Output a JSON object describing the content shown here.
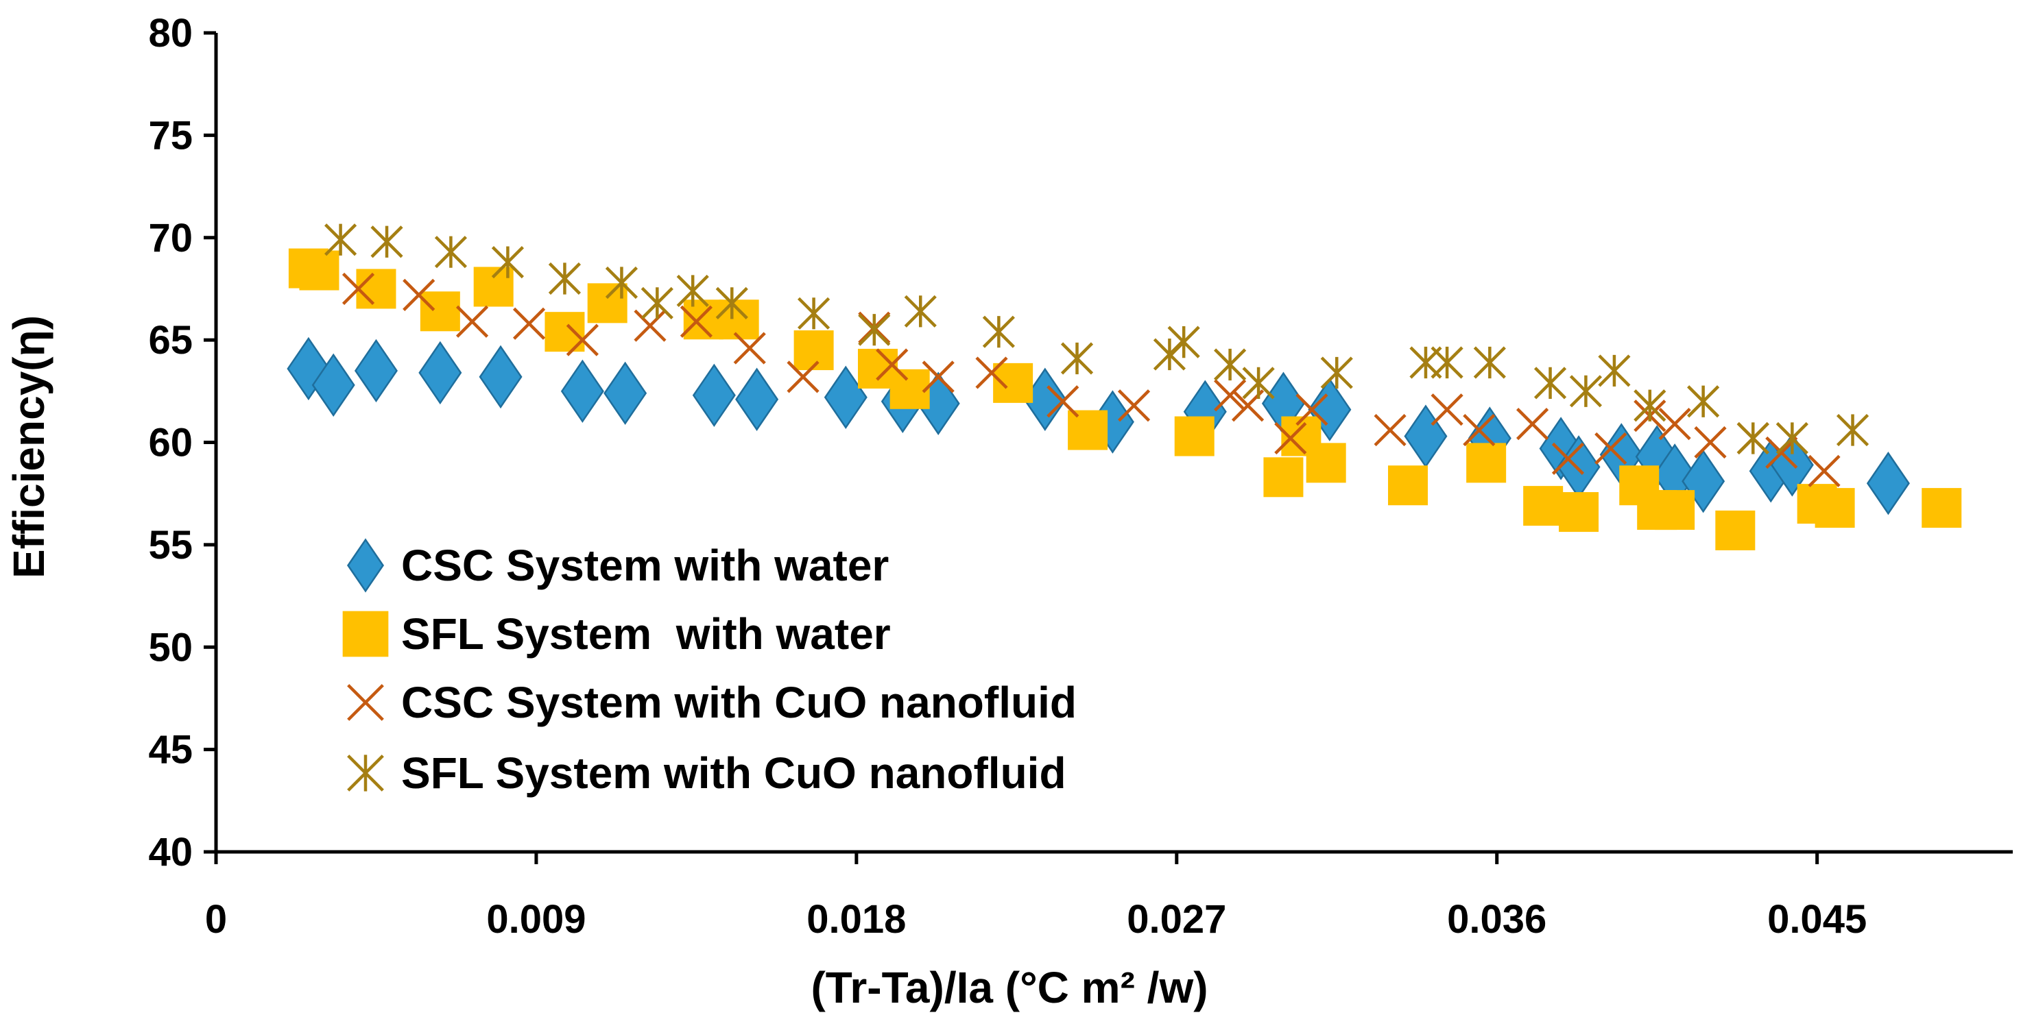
{
  "chart_data": {
    "type": "scatter",
    "title": "",
    "xlabel": "(Tr-Ta)/Ia (°C m² /w)",
    "ylabel": "Efficiency(η)",
    "xlim": [
      0,
      0.0505
    ],
    "ylim": [
      40,
      80
    ],
    "xticks": [
      0,
      0.009,
      0.018,
      0.027,
      0.036,
      0.045
    ],
    "xtick_labels": [
      "0",
      "0.009",
      "0.018",
      "0.027",
      "0.036",
      "0.045"
    ],
    "yticks": [
      40,
      45,
      50,
      55,
      60,
      65,
      70,
      75,
      80
    ],
    "ytick_labels": [
      "40",
      "45",
      "50",
      "55",
      "60",
      "65",
      "70",
      "75",
      "80"
    ],
    "grid": false,
    "legend_position": "bottom-left",
    "series": [
      {
        "name": "CSC System with water",
        "marker": "diamond",
        "color": "#2E96CF",
        "points": [
          [
            0.0026,
            63.6
          ],
          [
            0.0033,
            62.8
          ],
          [
            0.0045,
            63.5
          ],
          [
            0.0063,
            63.4
          ],
          [
            0.008,
            63.2
          ],
          [
            0.0103,
            62.5
          ],
          [
            0.0115,
            62.4
          ],
          [
            0.014,
            62.3
          ],
          [
            0.0152,
            62.1
          ],
          [
            0.0177,
            62.2
          ],
          [
            0.0193,
            62.0
          ],
          [
            0.0203,
            61.9
          ],
          [
            0.0233,
            62.1
          ],
          [
            0.0252,
            61.0
          ],
          [
            0.0278,
            61.5
          ],
          [
            0.03,
            61.9
          ],
          [
            0.0313,
            61.6
          ],
          [
            0.034,
            60.3
          ],
          [
            0.0358,
            60.2
          ],
          [
            0.0378,
            59.7
          ],
          [
            0.0383,
            58.8
          ],
          [
            0.0395,
            59.4
          ],
          [
            0.0405,
            59.3
          ],
          [
            0.041,
            58.4
          ],
          [
            0.0418,
            58.1
          ],
          [
            0.0437,
            58.6
          ],
          [
            0.0443,
            58.9
          ],
          [
            0.047,
            58.0
          ]
        ]
      },
      {
        "name": "SFL System  with water",
        "marker": "square",
        "color": "#FFC000",
        "points": [
          [
            0.0026,
            68.5
          ],
          [
            0.0029,
            68.4
          ],
          [
            0.0045,
            67.5
          ],
          [
            0.0063,
            66.4
          ],
          [
            0.0078,
            67.6
          ],
          [
            0.0098,
            65.4
          ],
          [
            0.011,
            66.8
          ],
          [
            0.0137,
            66.0
          ],
          [
            0.0147,
            66.0
          ],
          [
            0.0168,
            64.5
          ],
          [
            0.0186,
            63.6
          ],
          [
            0.0195,
            62.6
          ],
          [
            0.0224,
            62.9
          ],
          [
            0.0245,
            60.6
          ],
          [
            0.0275,
            60.3
          ],
          [
            0.03,
            58.3
          ],
          [
            0.0305,
            60.3
          ],
          [
            0.0312,
            59.0
          ],
          [
            0.0335,
            57.9
          ],
          [
            0.0357,
            59.0
          ],
          [
            0.0373,
            56.9
          ],
          [
            0.0383,
            56.6
          ],
          [
            0.04,
            57.9
          ],
          [
            0.0405,
            56.7
          ],
          [
            0.041,
            56.7
          ],
          [
            0.0427,
            55.7
          ],
          [
            0.045,
            57.0
          ],
          [
            0.0455,
            56.8
          ],
          [
            0.0485,
            56.8
          ]
        ]
      },
      {
        "name": "CSC System with CuO nanofluid",
        "marker": "x",
        "color": "#C55A11",
        "points": [
          [
            0.004,
            67.5
          ],
          [
            0.0057,
            67.2
          ],
          [
            0.0072,
            65.9
          ],
          [
            0.0088,
            65.8
          ],
          [
            0.0103,
            65.0
          ],
          [
            0.0122,
            65.7
          ],
          [
            0.0135,
            65.9
          ],
          [
            0.015,
            64.6
          ],
          [
            0.0165,
            63.2
          ],
          [
            0.0185,
            65.6
          ],
          [
            0.019,
            63.8
          ],
          [
            0.0203,
            63.2
          ],
          [
            0.0218,
            63.4
          ],
          [
            0.0238,
            62.0
          ],
          [
            0.0258,
            61.8
          ],
          [
            0.0285,
            62.3
          ],
          [
            0.029,
            61.8
          ],
          [
            0.0302,
            60.2
          ],
          [
            0.0308,
            61.6
          ],
          [
            0.033,
            60.6
          ],
          [
            0.0346,
            61.6
          ],
          [
            0.0355,
            60.6
          ],
          [
            0.037,
            60.9
          ],
          [
            0.038,
            59.2
          ],
          [
            0.0392,
            59.7
          ],
          [
            0.0403,
            61.3
          ],
          [
            0.041,
            60.9
          ],
          [
            0.042,
            60.0
          ],
          [
            0.0432,
            60.2
          ],
          [
            0.044,
            59.5
          ],
          [
            0.0452,
            58.6
          ]
        ]
      },
      {
        "name": "SFL System with CuO nanofluid",
        "marker": "star",
        "color": "#A57F12",
        "points": [
          [
            0.0035,
            69.9
          ],
          [
            0.0048,
            69.8
          ],
          [
            0.0066,
            69.3
          ],
          [
            0.0082,
            68.8
          ],
          [
            0.0098,
            68.0
          ],
          [
            0.0114,
            67.8
          ],
          [
            0.0124,
            66.8
          ],
          [
            0.0134,
            67.4
          ],
          [
            0.0145,
            66.8
          ],
          [
            0.0168,
            66.3
          ],
          [
            0.0185,
            65.5
          ],
          [
            0.0198,
            66.4
          ],
          [
            0.022,
            65.4
          ],
          [
            0.0242,
            64.1
          ],
          [
            0.0268,
            64.3
          ],
          [
            0.0272,
            64.9
          ],
          [
            0.0285,
            63.8
          ],
          [
            0.0293,
            62.9
          ],
          [
            0.0315,
            63.4
          ],
          [
            0.034,
            63.9
          ],
          [
            0.0346,
            63.9
          ],
          [
            0.0358,
            63.9
          ],
          [
            0.0375,
            62.9
          ],
          [
            0.0385,
            62.5
          ],
          [
            0.0393,
            63.5
          ],
          [
            0.0403,
            61.8
          ],
          [
            0.0418,
            62.0
          ],
          [
            0.0432,
            60.2
          ],
          [
            0.0443,
            60.2
          ],
          [
            0.046,
            60.6
          ]
        ]
      }
    ]
  }
}
